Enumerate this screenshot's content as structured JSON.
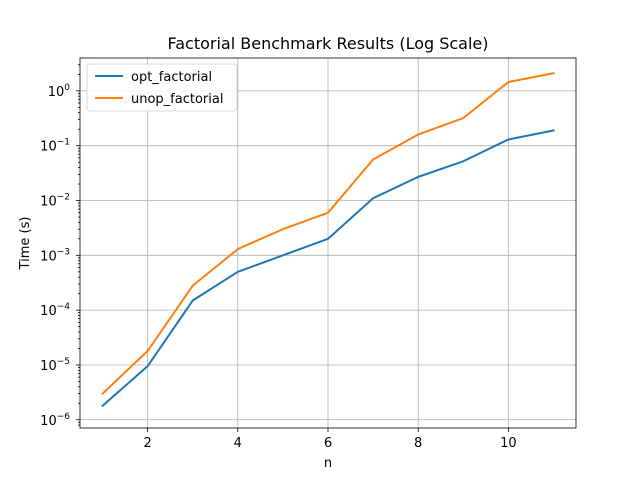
{
  "chart_data": {
    "type": "line",
    "title": "Factorial Benchmark Results (Log Scale)",
    "xlabel": "n",
    "ylabel": "Time (s)",
    "yscale": "log",
    "xlim": [
      0.5,
      11.5
    ],
    "ylim_exponents": [
      -6.15,
      0.6
    ],
    "x_ticks": [
      2,
      4,
      6,
      8,
      10
    ],
    "y_tick_exponents": [
      -6,
      -5,
      -4,
      -3,
      -2,
      -1,
      0
    ],
    "grid": true,
    "legend_position": "upper-left",
    "x": [
      1,
      2,
      3,
      4,
      5,
      6,
      7,
      8,
      9,
      10,
      11
    ],
    "series": [
      {
        "name": "opt_factorial",
        "color": "#1f77b4",
        "values": [
          1.8e-06,
          9.5e-06,
          0.00015,
          0.0005,
          0.001,
          0.002,
          0.011,
          0.027,
          0.052,
          0.13,
          0.19
        ]
      },
      {
        "name": "unop_factorial",
        "color": "#ff7f0e",
        "values": [
          3e-06,
          1.8e-05,
          0.00028,
          0.0013,
          0.003,
          0.006,
          0.056,
          0.16,
          0.32,
          1.45,
          2.1
        ]
      }
    ]
  }
}
